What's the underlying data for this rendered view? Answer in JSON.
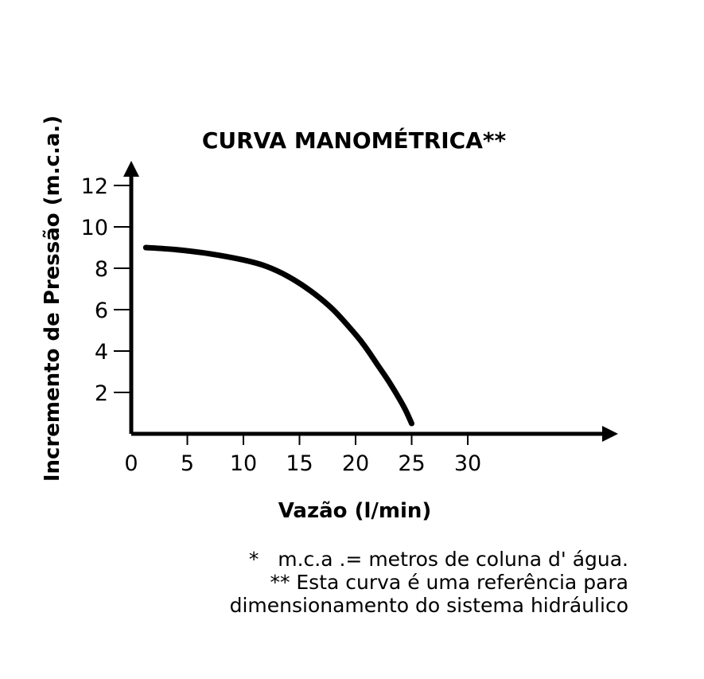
{
  "chart_data": {
    "type": "line",
    "title": "CURVA MANOMÉTRICA**",
    "xlabel": "Vazão (l/min)",
    "ylabel": "Incremento de Pressão (m.c.a.)",
    "x_ticks": [
      "0",
      "5",
      "10",
      "15",
      "20",
      "25",
      "30"
    ],
    "y_ticks": [
      "2",
      "4",
      "6",
      "8",
      "10",
      "12"
    ],
    "xlim": [
      0,
      43
    ],
    "ylim": [
      0,
      12
    ],
    "grid": false,
    "legend": "none",
    "line_color": "#000000",
    "series": [
      {
        "x": [
          1.3,
          4,
          7,
          10,
          12,
          14,
          16,
          18,
          20,
          21,
          22,
          23,
          24,
          24.5,
          25
        ],
        "values": [
          9.0,
          8.9,
          8.7,
          8.4,
          8.1,
          7.6,
          6.9,
          6.0,
          4.8,
          4.1,
          3.3,
          2.5,
          1.6,
          1.1,
          0.5
        ]
      }
    ]
  },
  "notes": {
    "line1": "*   m.c.a .= metros de coluna d' água.",
    "line2": "** Esta curva é uma referência para",
    "line3": "dimensionamento do sistema hidráulico"
  }
}
